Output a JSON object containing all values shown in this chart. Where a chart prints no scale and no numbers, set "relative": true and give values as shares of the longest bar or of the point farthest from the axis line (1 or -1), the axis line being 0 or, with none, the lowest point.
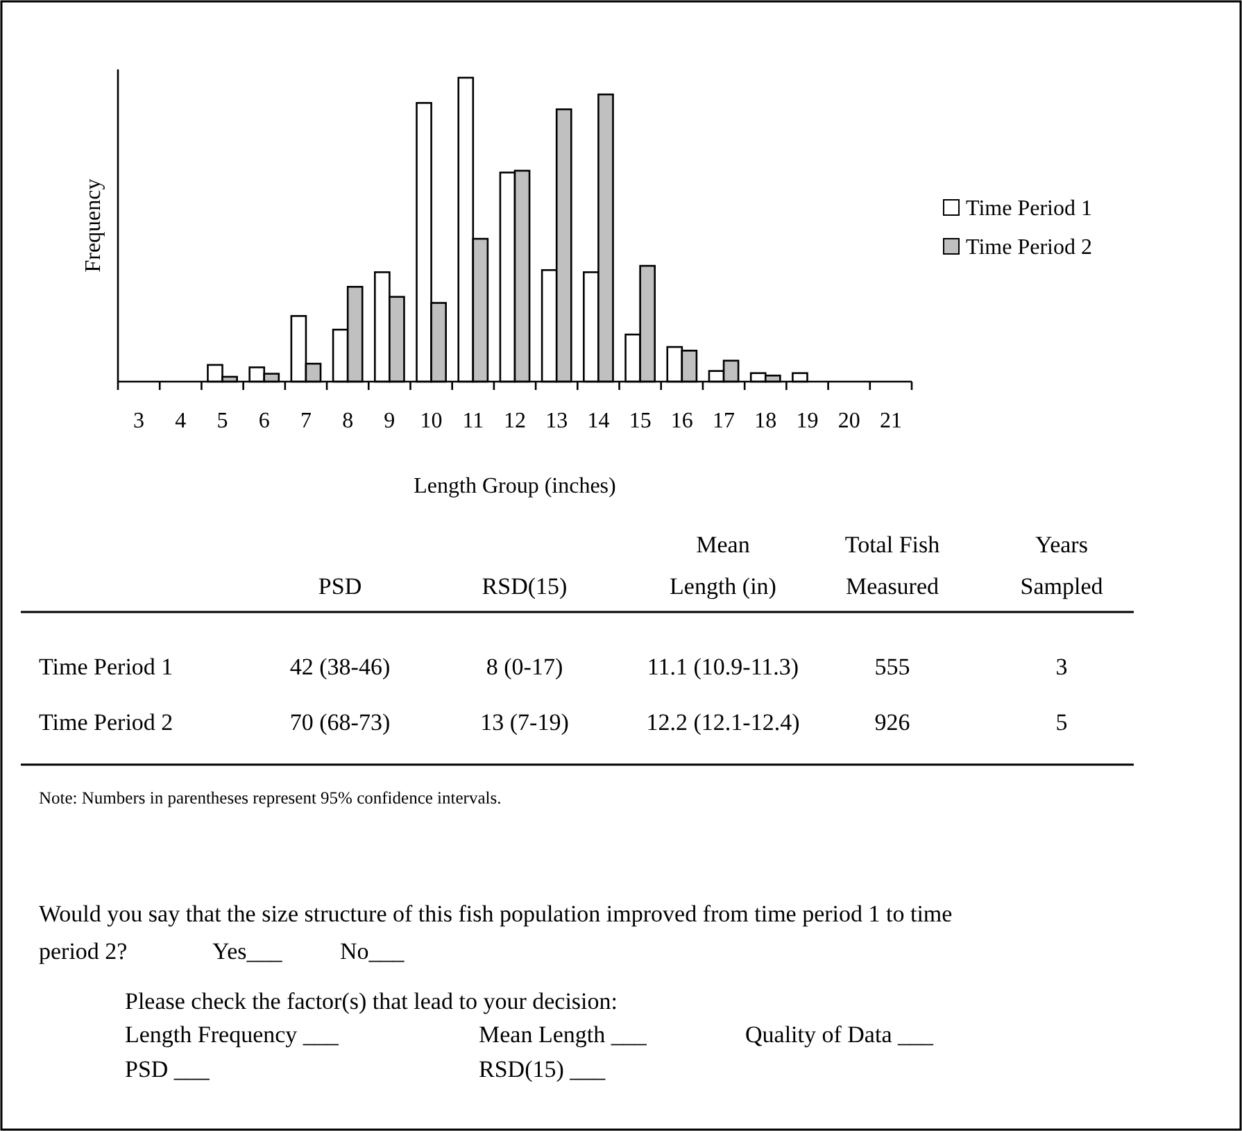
{
  "chart_data": [
    {
      "type": "bar",
      "relative": true,
      "xlabel": "Length Group (inches)",
      "ylabel": "Frequency",
      "legend": "right",
      "categories": [
        "3",
        "4",
        "5",
        "6",
        "7",
        "8",
        "9",
        "10",
        "11",
        "12",
        "13",
        "14",
        "15",
        "16",
        "17",
        "18",
        "19",
        "20",
        "21"
      ],
      "series": [
        {
          "name": "Time Period 1",
          "color": "#ffffff",
          "values": [
            0,
            0,
            0.055,
            0.047,
            0.216,
            0.171,
            0.36,
            0.917,
            1,
            0.688,
            0.367,
            0.36,
            0.155,
            0.114,
            0.035,
            0.028,
            0.028,
            0,
            0
          ]
        },
        {
          "name": "Time Period 2",
          "color": "#c0c0c0",
          "values": [
            0,
            0,
            0.016,
            0.026,
            0.059,
            0.312,
            0.279,
            0.259,
            0.47,
            0.694,
            0.896,
            0.945,
            0.381,
            0.102,
            0.069,
            0.02,
            0,
            0,
            0
          ]
        }
      ]
    },
    {
      "type": "other",
      "annotations": [
        "PSD",
        "RSD(15)",
        "Mean\nLength (in)",
        "Total Fish\nMeasured",
        "Years\nSampled",
        "Time Period 1",
        "42 (38-46)",
        "8 (0-17)",
        "11.1 (10.9-11.3)",
        "555",
        "3",
        "Time Period 2",
        "70 (68-73)",
        "13 (7-19)",
        "12.2 (12.1-12.4)",
        "926",
        "5",
        "Note: Numbers in parentheses represent 95% confidence intervals.",
        "Would you say that the size structure of this fish population improved from time period 1 to time",
        "period 2?",
        "Yes___",
        "No___",
        "Please check the factor(s) that lead to your decision:",
        "Length Frequency ___",
        "Mean Length ___",
        "Quality of Data ___",
        "PSD ___",
        "RSD(15) ___"
      ]
    }
  ]
}
